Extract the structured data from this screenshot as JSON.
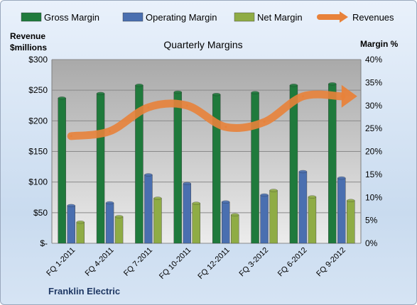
{
  "chart_data": {
    "type": "bar",
    "title": "Quarterly Margins",
    "company": "Franklin Electric",
    "left_axis_title_line1": "Revenue",
    "left_axis_title_line2": "$millions",
    "right_axis_title": "Margin %",
    "categories": [
      "FQ 1-2011",
      "FQ 4-2011",
      "FQ 7-2011",
      "FQ 10-2011",
      "FQ 12-2011",
      "FQ 3-2012",
      "FQ 6-2012",
      "FQ 9-2012"
    ],
    "series": [
      {
        "name": "Gross Margin",
        "axis": "right",
        "color": "#1f7a3c",
        "values": [
          31.6,
          32.6,
          34.4,
          32.9,
          32.4,
          32.8,
          34.4,
          34.7
        ]
      },
      {
        "name": "Operating Margin",
        "axis": "right",
        "color": "#4a6fb0",
        "values": [
          8.2,
          8.8,
          14.9,
          13.0,
          9.0,
          10.5,
          15.6,
          14.2
        ]
      },
      {
        "name": "Net Margin",
        "axis": "right",
        "color": "#8fac45",
        "values": [
          4.6,
          5.8,
          9.8,
          8.7,
          6.2,
          11.5,
          10.1,
          9.3
        ]
      },
      {
        "name": "Revenues",
        "axis": "left",
        "type": "line",
        "color": "#e8823a",
        "values": [
          175,
          183,
          222,
          225,
          190,
          198,
          240,
          240
        ]
      }
    ],
    "y_left": {
      "min": 0,
      "max": 300,
      "step": 50,
      "tick_labels": [
        "$-",
        "$50",
        "$100",
        "$150",
        "$200",
        "$250",
        "$300"
      ]
    },
    "y_right": {
      "min": 0,
      "max": 40,
      "step": 5,
      "tick_labels": [
        "0%",
        "5%",
        "10%",
        "15%",
        "20%",
        "25%",
        "30%",
        "35%",
        "40%"
      ]
    },
    "grid": true,
    "legend_position": "top"
  }
}
